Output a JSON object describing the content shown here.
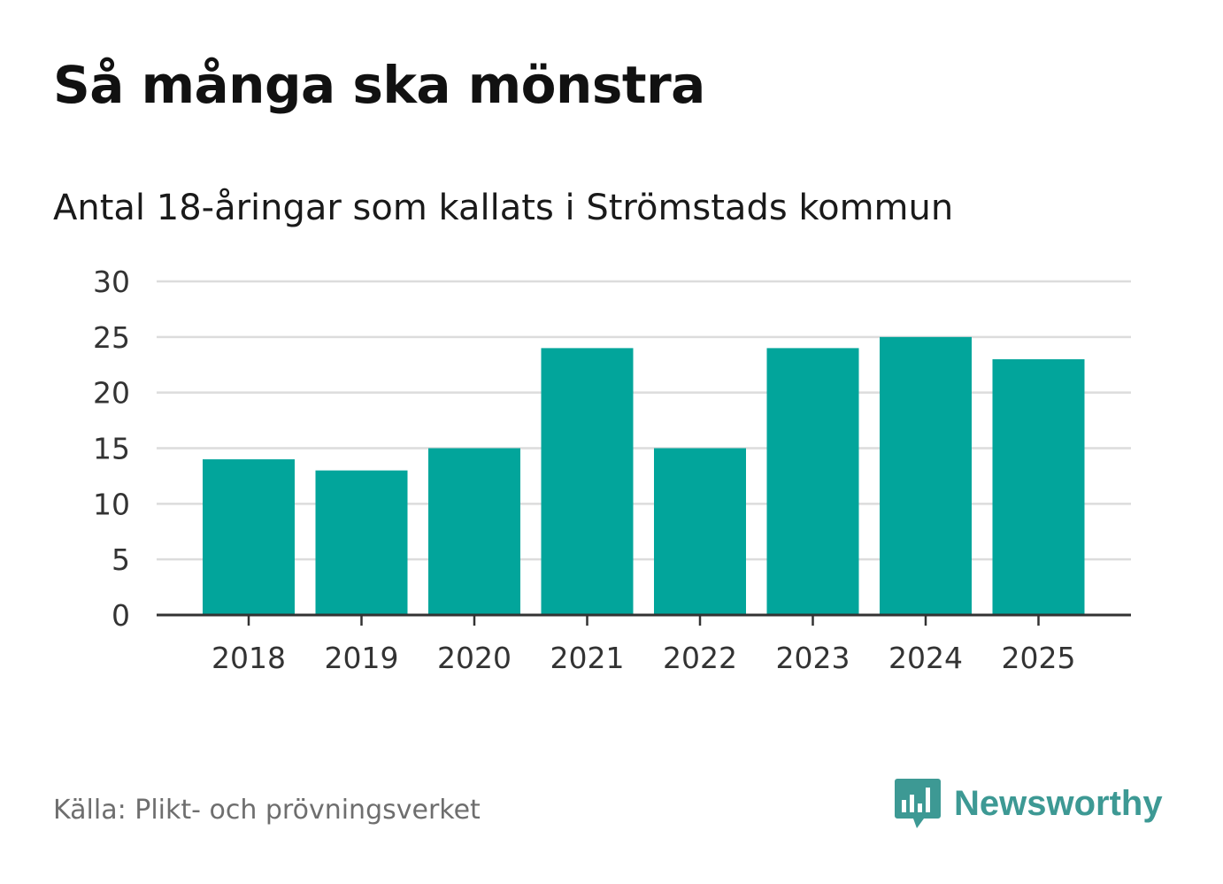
{
  "header": {
    "title": "Så många ska mönstra",
    "subtitle": "Antal 18-åringar som kallats i Strömstads kommun"
  },
  "footer": {
    "source": "Källa: Plikt- och prövningsverket",
    "brand": "Newsworthy",
    "brand_icon": "bar-chart-speech-bubble-icon"
  },
  "colors": {
    "bar": "#02a59b",
    "grid": "#dcdcdc",
    "axis": "#333333",
    "brand": "#3d9994"
  },
  "chart_data": {
    "type": "bar",
    "title": "Så många ska mönstra",
    "subtitle": "Antal 18-åringar som kallats i Strömstads kommun",
    "xlabel": "",
    "ylabel": "",
    "categories": [
      "2018",
      "2019",
      "2020",
      "2021",
      "2022",
      "2023",
      "2024",
      "2025"
    ],
    "values": [
      14,
      13,
      15,
      24,
      15,
      24,
      25,
      23
    ],
    "ylim": [
      0,
      30
    ],
    "yticks": [
      0,
      5,
      10,
      15,
      20,
      25,
      30
    ],
    "grid": true,
    "legend": "none"
  }
}
